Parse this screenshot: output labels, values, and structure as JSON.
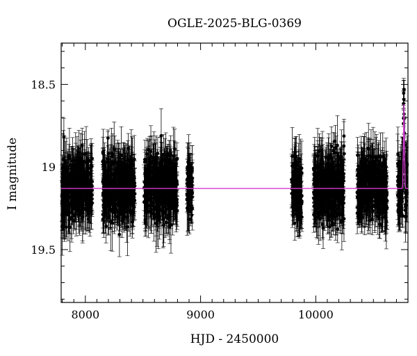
{
  "chart_data": {
    "type": "scatter",
    "title": "OGLE-2025-BLG-0369",
    "xlabel": "HJD - 2450000",
    "ylabel": "I magnitude",
    "xlim": [
      7790,
      10800
    ],
    "ylim": [
      19.82,
      18.25
    ],
    "y_inverted": true,
    "xticks": [
      "8000",
      "9000",
      "10000"
    ],
    "yticks": [
      "18.5",
      "19",
      "19.5"
    ],
    "grid": false,
    "series": [
      {
        "kind": "observations",
        "marker": "filled-circle-with-errorbars",
        "color": "#000000",
        "seasons": [
          {
            "x_start": 7790,
            "x_end": 8060,
            "mag_center": 19.12,
            "mag_spread": 0.3
          },
          {
            "x_start": 8150,
            "x_end": 8430,
            "mag_center": 19.12,
            "mag_spread": 0.3
          },
          {
            "x_start": 8510,
            "x_end": 8800,
            "mag_center": 19.12,
            "mag_spread": 0.3
          },
          {
            "x_start": 8880,
            "x_end": 8930,
            "mag_center": 19.12,
            "mag_spread": 0.25
          },
          {
            "x_start": 9790,
            "x_end": 9880,
            "mag_center": 19.12,
            "mag_spread": 0.28
          },
          {
            "x_start": 9980,
            "x_end": 10250,
            "mag_center": 19.12,
            "mag_spread": 0.3
          },
          {
            "x_start": 10360,
            "x_end": 10620,
            "mag_center": 19.12,
            "mag_spread": 0.3
          },
          {
            "x_start": 10710,
            "x_end": 10800,
            "mag_center": 19.12,
            "mag_spread": 0.3
          }
        ],
        "event_peak": {
          "x": 10765,
          "mag": 18.62
        }
      },
      {
        "kind": "model",
        "color": "#d23ad2",
        "baseline_mag": 19.13,
        "peak_x": 10765,
        "peak_mag": 18.62
      }
    ]
  }
}
